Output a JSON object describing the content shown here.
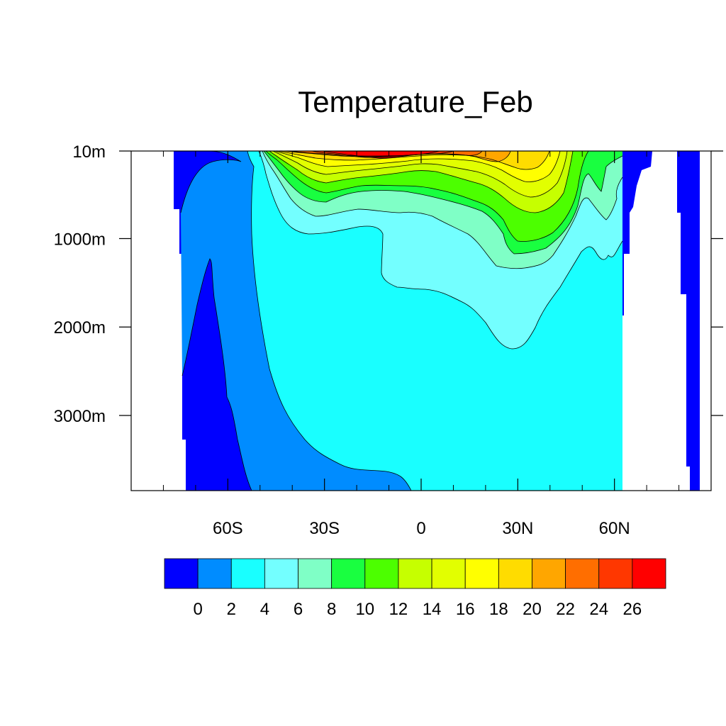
{
  "chart_data": {
    "type": "heatmap",
    "subtype": "filled-contour depth-latitude section",
    "title": "Temperature_Feb",
    "xlabel": "",
    "ylabel": "",
    "xlim": [
      -90,
      90
    ],
    "ylim": [
      10,
      3850
    ],
    "y_inverted": true,
    "x_ticks": [
      {
        "value": -60,
        "label": "60S"
      },
      {
        "value": -30,
        "label": "30S"
      },
      {
        "value": 0,
        "label": "0"
      },
      {
        "value": 30,
        "label": "30N"
      },
      {
        "value": 60,
        "label": "60N"
      }
    ],
    "y_ticks": [
      {
        "value": 10,
        "label": "10m"
      },
      {
        "value": 1000,
        "label": "1000m"
      },
      {
        "value": 2000,
        "label": "2000m"
      },
      {
        "value": 3000,
        "label": "3000m"
      }
    ],
    "colorbar": {
      "orientation": "horizontal",
      "labels": [
        "0",
        "2",
        "4",
        "6",
        "8",
        "10",
        "12",
        "14",
        "16",
        "18",
        "20",
        "22",
        "24",
        "26"
      ],
      "colors": [
        "#0000ff",
        "#008cff",
        "#19ffff",
        "#73ffff",
        "#7fffc6",
        "#19ff40",
        "#4cff00",
        "#c6ff00",
        "#e2ff00",
        "#ffff00",
        "#ffdc00",
        "#ffa600",
        "#ff6e00",
        "#ff3700",
        "#ff0000"
      ]
    },
    "bands": [
      {
        "range": "<0 °C",
        "color": "#0000ff",
        "region": "Antarctic deep/bottom water ~70S-55S and Arctic surface/deep water"
      },
      {
        "range": "0-2 °C",
        "color": "#008cff",
        "region": "Southern Ocean full depth ~75S-45S, spreading north along bottom to ~0"
      },
      {
        "range": "2-4 °C",
        "color": "#19ffff",
        "region": "bulk of deep ocean 45S-55N below ~1200-2200 m"
      },
      {
        "range": "4-6 °C",
        "color": "#73ffff",
        "region": "intermediate water ~300-2200 m, deepest near 30N"
      },
      {
        "range": "6-28 °C",
        "color": "gradient",
        "region": "upper thermocline 10-1100 m, warmest (>26) at surface near 15S-5S"
      }
    ]
  }
}
